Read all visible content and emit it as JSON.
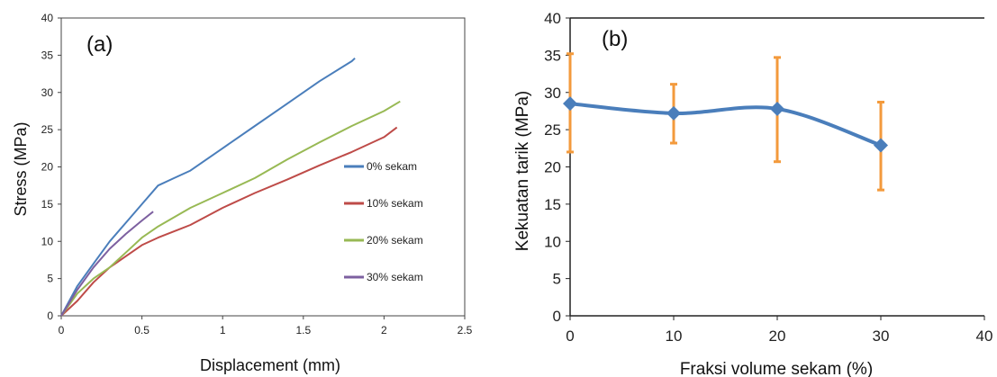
{
  "chart_data": [
    {
      "panel": "(a)",
      "type": "line",
      "xlabel": "Displacement (mm)",
      "ylabel": "Stress (MPa)",
      "xlim": [
        0,
        2.5
      ],
      "ylim": [
        0,
        40
      ],
      "xticks": [
        "0",
        "0.5",
        "1",
        "1.5",
        "2",
        "2.5"
      ],
      "yticks": [
        "0",
        "5",
        "10",
        "15",
        "20",
        "25",
        "30",
        "35",
        "40"
      ],
      "legend_position": "right",
      "grid": false,
      "series": [
        {
          "name": "0% sekam",
          "color": "#4a7ebb",
          "x": [
            0,
            0.1,
            0.2,
            0.3,
            0.4,
            0.5,
            0.6,
            0.7,
            0.8,
            1.0,
            1.2,
            1.4,
            1.6,
            1.8,
            1.82
          ],
          "y": [
            0,
            4,
            7,
            10,
            12.5,
            15,
            17.5,
            18.5,
            19.5,
            22.5,
            25.5,
            28.5,
            31.5,
            34.2,
            34.6
          ]
        },
        {
          "name": "10% sekam",
          "color": "#be4b48",
          "x": [
            0,
            0.1,
            0.2,
            0.3,
            0.4,
            0.5,
            0.6,
            0.8,
            1.0,
            1.2,
            1.4,
            1.6,
            1.8,
            2.0,
            2.08
          ],
          "y": [
            0,
            2,
            4.5,
            6.5,
            8,
            9.5,
            10.5,
            12.2,
            14.5,
            16.5,
            18.3,
            20.2,
            22,
            24,
            25.3
          ]
        },
        {
          "name": "20% sekam",
          "color": "#98b954",
          "x": [
            0,
            0.1,
            0.2,
            0.3,
            0.4,
            0.5,
            0.6,
            0.8,
            1.0,
            1.2,
            1.4,
            1.6,
            1.8,
            2.0,
            2.1
          ],
          "y": [
            0,
            3,
            5,
            6.5,
            8.5,
            10.5,
            12,
            14.5,
            16.5,
            18.5,
            21,
            23.3,
            25.5,
            27.5,
            28.8
          ]
        },
        {
          "name": "30% sekam",
          "color": "#7d60a0",
          "x": [
            0,
            0.1,
            0.2,
            0.3,
            0.4,
            0.5,
            0.57
          ],
          "y": [
            0,
            3.5,
            6.5,
            9,
            11,
            12.8,
            14
          ]
        }
      ]
    },
    {
      "panel": "(b)",
      "type": "line",
      "xlabel": "Fraksi volume sekam (%)",
      "ylabel": "Kekuatan tarik (MPa)",
      "xlim": [
        0,
        40
      ],
      "ylim": [
        0,
        40
      ],
      "xticks": [
        "0",
        "10",
        "20",
        "30",
        "40"
      ],
      "yticks": [
        "0",
        "5",
        "10",
        "15",
        "20",
        "25",
        "30",
        "35",
        "40"
      ],
      "grid": false,
      "series": [
        {
          "color": "#4a7ebb",
          "error_color": "#f39a3c",
          "x": [
            0,
            10,
            20,
            30
          ],
          "y": [
            28.5,
            27.2,
            27.8,
            22.9
          ],
          "err_low": [
            22,
            23.2,
            20.7,
            16.9
          ],
          "err_high": [
            35.2,
            31.1,
            34.7,
            28.7
          ]
        }
      ]
    }
  ]
}
